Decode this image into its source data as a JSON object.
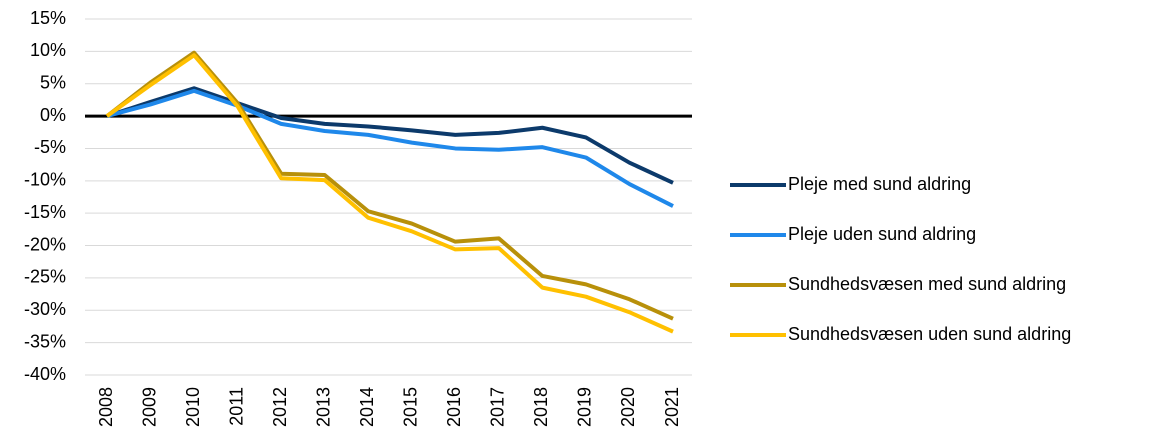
{
  "chart_data": {
    "type": "line",
    "categories": [
      "2008",
      "2009",
      "2010",
      "2011",
      "2012",
      "2013",
      "2014",
      "2015",
      "2016",
      "2017",
      "2018",
      "2019",
      "2020",
      "2021"
    ],
    "series": [
      {
        "name": "Pleje med sund aldring",
        "color": "#0c3a6b",
        "values": [
          0,
          2.2,
          4.3,
          2.0,
          -0.3,
          -1.2,
          -1.6,
          -2.2,
          -2.9,
          -2.6,
          -1.8,
          -3.3,
          -7.2,
          -10.3
        ]
      },
      {
        "name": "Pleje uden sund aldring",
        "color": "#1f88ea",
        "values": [
          0,
          1.8,
          3.9,
          1.6,
          -1.2,
          -2.3,
          -2.9,
          -4.1,
          -5.0,
          -5.2,
          -4.8,
          -6.4,
          -10.5,
          -13.9
        ]
      },
      {
        "name": "Sundhedsvæsen med sund aldring",
        "color": "#b8900a",
        "values": [
          0,
          5.2,
          9.8,
          2.0,
          -8.9,
          -9.1,
          -14.7,
          -16.6,
          -19.4,
          -18.9,
          -24.7,
          -26.0,
          -28.3,
          -31.3
        ]
      },
      {
        "name": "Sundhedsvæsen uden sund aldring",
        "color": "#ffc000",
        "values": [
          0,
          4.8,
          9.4,
          1.5,
          -9.6,
          -9.9,
          -15.7,
          -17.8,
          -20.6,
          -20.4,
          -26.5,
          -27.9,
          -30.3,
          -33.3
        ]
      }
    ],
    "ylim": [
      -40,
      15
    ],
    "yticks": [
      {
        "value": -40,
        "label": "-40%"
      },
      {
        "value": -35,
        "label": "-35%"
      },
      {
        "value": -30,
        "label": "-30%"
      },
      {
        "value": -25,
        "label": "-25%"
      },
      {
        "value": -20,
        "label": "-20%"
      },
      {
        "value": -15,
        "label": "-15%"
      },
      {
        "value": -10,
        "label": "-10%"
      },
      {
        "value": -5,
        "label": "-5%"
      },
      {
        "value": 0,
        "label": "0%"
      },
      {
        "value": 5,
        "label": "5%"
      },
      {
        "value": 10,
        "label": "10%"
      },
      {
        "value": 15,
        "label": "15%"
      }
    ],
    "grid": true,
    "legend": "right"
  }
}
